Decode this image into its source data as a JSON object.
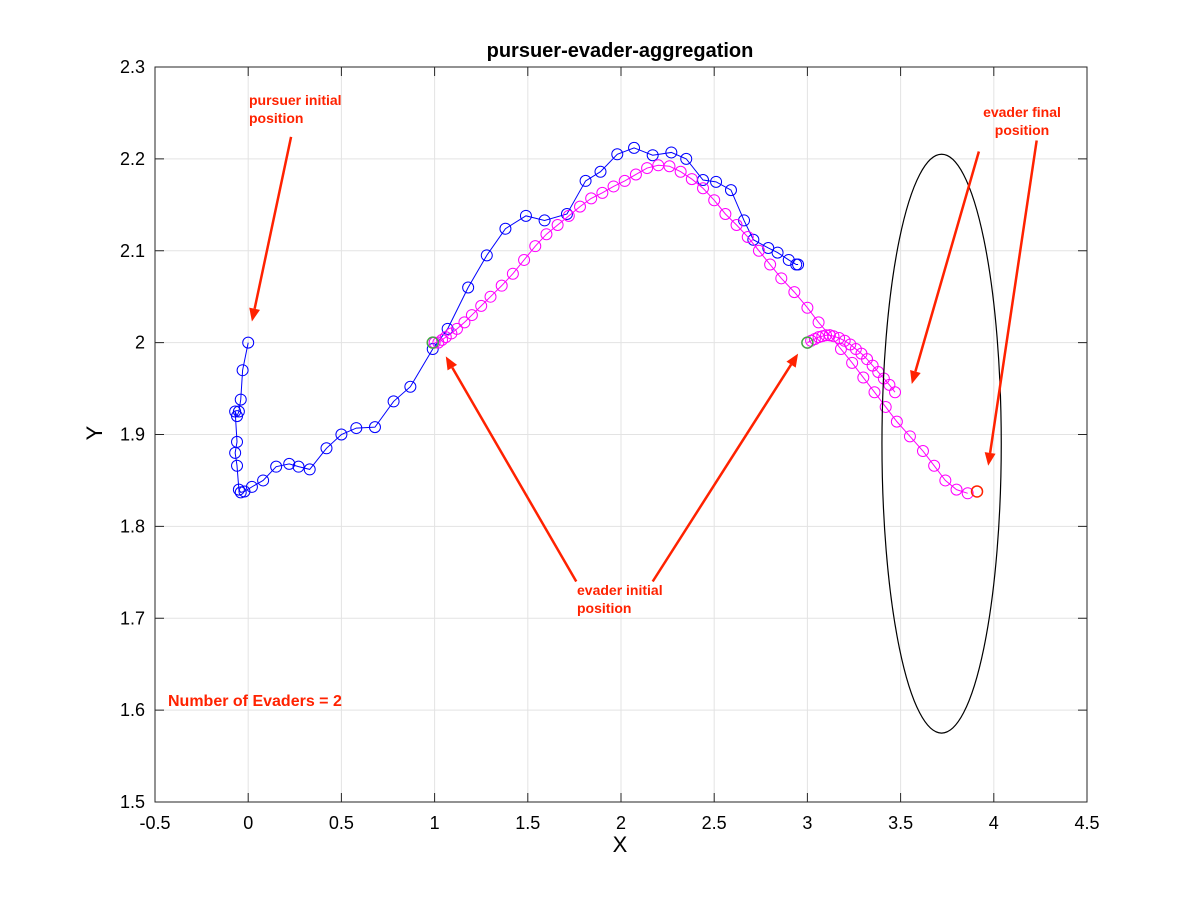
{
  "chart_data": {
    "type": "scatter",
    "title": "pursuer-evader-aggregation",
    "xlabel": "X",
    "ylabel": "Y",
    "xlim": [
      -0.5,
      4.5
    ],
    "ylim": [
      1.5,
      2.3
    ],
    "xticks": [
      -0.5,
      0,
      0.5,
      1,
      1.5,
      2,
      2.5,
      3,
      3.5,
      4,
      4.5
    ],
    "yticks": [
      1.5,
      1.6,
      1.7,
      1.8,
      1.9,
      2.0,
      2.1,
      2.2,
      2.3
    ],
    "xtick_labels": [
      "-0.5",
      "0",
      "0.5",
      "1",
      "1.5",
      "2",
      "2.5",
      "3",
      "3.5",
      "4",
      "4.5"
    ],
    "ytick_labels": [
      "1.5",
      "1.6",
      "1.7",
      "1.8",
      "1.9",
      "2",
      "2.1",
      "2.2",
      "2.3"
    ],
    "grid": true,
    "series": [
      {
        "color": "#0000ff",
        "marker": "circle",
        "line": true,
        "x": [
          0,
          -0.03,
          -0.04,
          -0.05,
          -0.06,
          -0.07,
          -0.06,
          -0.07,
          -0.06,
          -0.05,
          -0.04,
          -0.02,
          0.02,
          0.08,
          0.15,
          0.22,
          0.27,
          0.33,
          0.42,
          0.5,
          0.58,
          0.68,
          0.78,
          0.87,
          0.99,
          1.07,
          1.18,
          1.28,
          1.38,
          1.49,
          1.59,
          1.71,
          1.81,
          1.89,
          1.98,
          2.07,
          2.17,
          2.27,
          2.35,
          2.44,
          2.51,
          2.59,
          2.66,
          2.71,
          2.79,
          2.84,
          2.9,
          2.94,
          2.95
        ],
        "y": [
          2.0,
          1.97,
          1.938,
          1.925,
          1.92,
          1.925,
          1.892,
          1.88,
          1.866,
          1.84,
          1.837,
          1.838,
          1.843,
          1.85,
          1.865,
          1.868,
          1.865,
          1.862,
          1.885,
          1.9,
          1.907,
          1.908,
          1.936,
          1.952,
          1.993,
          2.015,
          2.06,
          2.095,
          2.124,
          2.138,
          2.133,
          2.14,
          2.176,
          2.186,
          2.205,
          2.212,
          2.204,
          2.207,
          2.2,
          2.177,
          2.175,
          2.166,
          2.133,
          2.112,
          2.103,
          2.098,
          2.09,
          2.085,
          2.085
        ]
      },
      {
        "color": "#ff00ff",
        "marker": "circle",
        "line": true,
        "x": [
          1.0,
          1.02,
          1.04,
          1.06,
          1.09,
          1.12,
          1.16,
          1.2,
          1.25,
          1.3,
          1.36,
          1.42,
          1.48,
          1.54,
          1.6,
          1.66,
          1.72,
          1.78,
          1.84,
          1.9,
          1.96,
          2.02,
          2.08,
          2.14,
          2.2,
          2.26,
          2.32,
          2.38,
          2.44,
          2.5,
          2.56,
          2.62,
          2.68,
          2.74,
          2.8,
          2.86,
          2.93,
          3.0,
          3.06,
          3.12,
          3.18,
          3.24,
          3.3,
          3.36,
          3.42,
          3.48,
          3.55,
          3.62,
          3.68,
          3.74,
          3.8,
          3.86
        ],
        "y": [
          2.0,
          2.0,
          2.003,
          2.006,
          2.01,
          2.015,
          2.022,
          2.03,
          2.04,
          2.05,
          2.062,
          2.075,
          2.09,
          2.105,
          2.118,
          2.128,
          2.138,
          2.148,
          2.157,
          2.163,
          2.17,
          2.176,
          2.183,
          2.19,
          2.193,
          2.192,
          2.186,
          2.178,
          2.168,
          2.155,
          2.14,
          2.128,
          2.115,
          2.1,
          2.085,
          2.07,
          2.055,
          2.038,
          2.022,
          2.008,
          1.993,
          1.978,
          1.962,
          1.946,
          1.93,
          1.914,
          1.898,
          1.882,
          1.866,
          1.85,
          1.84,
          1.836
        ]
      },
      {
        "color": "#ff00ff",
        "marker": "circle",
        "line": true,
        "x": [
          3.0,
          3.02,
          3.04,
          3.06,
          3.08,
          3.1,
          3.12,
          3.14,
          3.17,
          3.2,
          3.23,
          3.26,
          3.29,
          3.32,
          3.35,
          3.38,
          3.41,
          3.44,
          3.47
        ],
        "y": [
          2.0,
          2.002,
          2.004,
          2.006,
          2.007,
          2.008,
          2.008,
          2.007,
          2.005,
          2.002,
          1.998,
          1.993,
          1.988,
          1.982,
          1.975,
          1.968,
          1.961,
          1.954,
          1.946
        ]
      }
    ],
    "initial_markers": {
      "color": "#44aa44",
      "x": [
        0.99,
        3.0
      ],
      "y": [
        2.0,
        2.0
      ]
    },
    "final_marker": {
      "color": "#ff2200",
      "x": 3.91,
      "y": 1.838
    },
    "ellipse": {
      "color": "#000000",
      "cx": 3.72,
      "cy": 1.89,
      "rx": 0.32,
      "ry": 0.315
    },
    "annotations": [
      {
        "lines": [
          "pursuer initial",
          "position"
        ],
        "color": "#ff2200",
        "arrows": [
          {
            "from": [
              0.23,
              2.224
            ],
            "to": [
              0.02,
              2.023
            ]
          }
        ]
      },
      {
        "lines": [
          "evader final",
          "position"
        ],
        "color": "#ff2200",
        "arrows": [
          {
            "from": [
              3.92,
              2.208
            ],
            "to": [
              3.56,
              1.955
            ]
          },
          {
            "from": [
              4.23,
              2.22
            ],
            "to": [
              3.97,
              1.866
            ]
          }
        ]
      },
      {
        "lines": [
          "evader  initial",
          "position"
        ],
        "color": "#ff2200",
        "arrows": [
          {
            "from": [
              1.76,
              1.74
            ],
            "to": [
              1.06,
              1.985
            ]
          },
          {
            "from": [
              2.17,
              1.74
            ],
            "to": [
              2.95,
              1.988
            ]
          }
        ]
      }
    ],
    "count_label": "Number of Evaders = 2"
  }
}
